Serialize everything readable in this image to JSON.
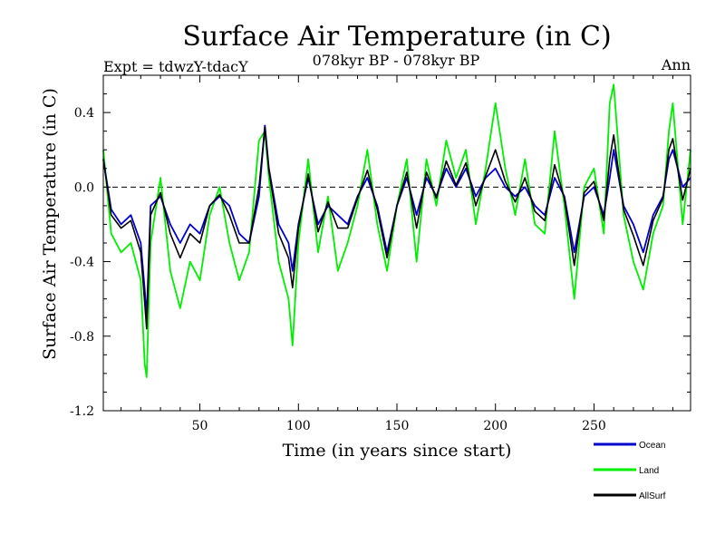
{
  "chart_data": {
    "type": "line",
    "title": "Surface Air Temperature (in C)",
    "subtitle_left": "Expt = tdwzY-tdacY",
    "subtitle_center": "078kyr BP - 078kyr BP",
    "subtitle_right": "Ann",
    "xlabel": "Time (in years since start)",
    "ylabel": "Surface Air Temperature (in C)",
    "xlim": [
      1,
      299
    ],
    "ylim": [
      -1.2,
      0.6
    ],
    "xticks": [
      50,
      100,
      150,
      200,
      250
    ],
    "xtick_labels": [
      "50",
      "100",
      "150",
      "200",
      "250"
    ],
    "yticks": [
      -1.2,
      -0.8,
      -0.4,
      0.0,
      0.4
    ],
    "ytick_labels": [
      "-1.2",
      "-0.8",
      "-0.4",
      "0.0",
      "0.4"
    ],
    "reference_line": 0.0,
    "grid": false,
    "legend_position": "bottom-right",
    "series": [
      {
        "name": "Ocean",
        "color": "#0000cc",
        "x": [
          1,
          5,
          10,
          15,
          20,
          22,
          23,
          25,
          30,
          35,
          40,
          45,
          50,
          55,
          60,
          65,
          70,
          75,
          80,
          83,
          85,
          90,
          95,
          97,
          100,
          105,
          110,
          115,
          120,
          125,
          130,
          135,
          140,
          145,
          150,
          155,
          160,
          165,
          170,
          175,
          180,
          185,
          190,
          195,
          200,
          205,
          210,
          215,
          220,
          225,
          230,
          235,
          240,
          245,
          250,
          255,
          258,
          260,
          265,
          270,
          275,
          280,
          285,
          288,
          290,
          295,
          299
        ],
        "values": [
          0.15,
          -0.12,
          -0.2,
          -0.15,
          -0.3,
          -0.55,
          -0.7,
          -0.1,
          -0.05,
          -0.2,
          -0.3,
          -0.2,
          -0.25,
          -0.1,
          -0.05,
          -0.1,
          -0.25,
          -0.3,
          -0.05,
          0.33,
          0.1,
          -0.2,
          -0.3,
          -0.45,
          -0.2,
          0.05,
          -0.2,
          -0.1,
          -0.15,
          -0.2,
          -0.05,
          0.05,
          -0.1,
          -0.35,
          -0.1,
          0.05,
          -0.15,
          0.05,
          -0.05,
          0.1,
          0.0,
          0.1,
          -0.05,
          0.05,
          0.1,
          0.0,
          -0.05,
          0.0,
          -0.1,
          -0.15,
          0.05,
          -0.05,
          -0.35,
          -0.05,
          0.0,
          -0.15,
          0.05,
          0.2,
          -0.1,
          -0.2,
          -0.35,
          -0.15,
          -0.05,
          0.15,
          0.2,
          0.0,
          0.05
        ]
      },
      {
        "name": "Land",
        "color": "#00ee00",
        "x": [
          1,
          5,
          10,
          15,
          20,
          22,
          23,
          25,
          30,
          35,
          40,
          45,
          50,
          55,
          60,
          65,
          70,
          75,
          80,
          83,
          85,
          90,
          95,
          97,
          100,
          105,
          110,
          115,
          120,
          125,
          130,
          135,
          140,
          145,
          150,
          155,
          160,
          165,
          170,
          175,
          180,
          185,
          190,
          195,
          200,
          205,
          210,
          215,
          220,
          225,
          230,
          235,
          240,
          245,
          250,
          255,
          258,
          260,
          265,
          270,
          275,
          280,
          285,
          288,
          290,
          295,
          299
        ],
        "values": [
          0.2,
          -0.25,
          -0.35,
          -0.3,
          -0.5,
          -0.95,
          -1.02,
          -0.3,
          0.05,
          -0.45,
          -0.65,
          -0.4,
          -0.5,
          -0.15,
          0.0,
          -0.3,
          -0.5,
          -0.35,
          0.25,
          0.3,
          0.05,
          -0.4,
          -0.6,
          -0.85,
          -0.3,
          0.15,
          -0.35,
          -0.05,
          -0.45,
          -0.3,
          -0.1,
          0.2,
          -0.2,
          -0.45,
          -0.1,
          0.15,
          -0.4,
          0.15,
          -0.1,
          0.25,
          0.05,
          0.2,
          -0.2,
          0.1,
          0.45,
          0.1,
          -0.15,
          0.15,
          -0.2,
          -0.25,
          0.3,
          -0.1,
          -0.6,
          0.0,
          0.1,
          -0.25,
          0.45,
          0.55,
          -0.15,
          -0.4,
          -0.55,
          -0.25,
          -0.1,
          0.3,
          0.45,
          -0.2,
          0.2
        ]
      },
      {
        "name": "AllSurf",
        "color": "#000000",
        "x": [
          1,
          5,
          10,
          15,
          20,
          22,
          23,
          25,
          30,
          35,
          40,
          45,
          50,
          55,
          60,
          65,
          70,
          75,
          80,
          83,
          85,
          90,
          95,
          97,
          100,
          105,
          110,
          115,
          120,
          125,
          130,
          135,
          140,
          145,
          150,
          155,
          160,
          165,
          170,
          175,
          180,
          185,
          190,
          195,
          200,
          205,
          210,
          215,
          220,
          225,
          230,
          235,
          240,
          245,
          250,
          255,
          258,
          260,
          265,
          270,
          275,
          280,
          285,
          288,
          290,
          295,
          299
        ],
        "values": [
          0.15,
          -0.15,
          -0.22,
          -0.18,
          -0.35,
          -0.62,
          -0.76,
          -0.15,
          -0.03,
          -0.25,
          -0.38,
          -0.25,
          -0.3,
          -0.1,
          -0.04,
          -0.15,
          -0.3,
          -0.3,
          0.0,
          0.32,
          0.09,
          -0.25,
          -0.38,
          -0.54,
          -0.22,
          0.07,
          -0.24,
          -0.08,
          -0.22,
          -0.22,
          -0.06,
          0.09,
          -0.12,
          -0.38,
          -0.1,
          0.08,
          -0.22,
          0.08,
          -0.06,
          0.14,
          0.01,
          0.13,
          -0.1,
          0.06,
          0.2,
          0.03,
          -0.08,
          0.05,
          -0.13,
          -0.18,
          0.12,
          -0.06,
          -0.42,
          -0.03,
          0.03,
          -0.18,
          0.15,
          0.28,
          -0.12,
          -0.26,
          -0.42,
          -0.18,
          -0.06,
          0.2,
          0.26,
          -0.07,
          0.1
        ]
      }
    ]
  }
}
